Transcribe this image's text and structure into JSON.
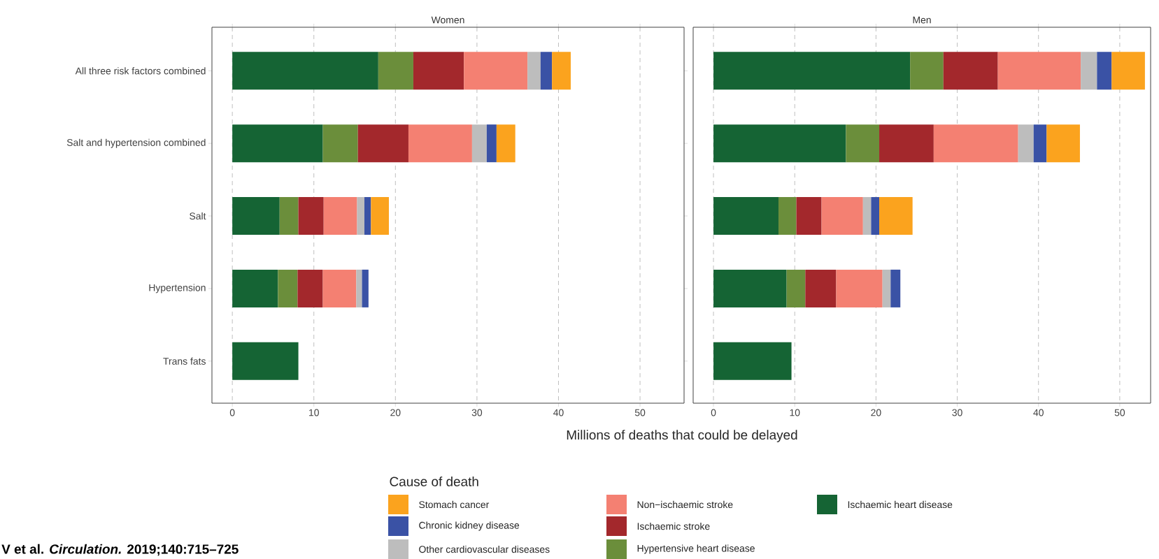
{
  "chart_data": [
    {
      "type": "bar",
      "title": "Women",
      "orientation": "horizontal",
      "stacked": true,
      "grid": "x",
      "legend": "bottom",
      "legend_title": "Cause of death",
      "xlabel": "Millions of deaths that could be delayed",
      "categories": [
        "All three risk factors combined",
        "Salt and hypertension combined",
        "Salt",
        "Hypertension",
        "Trans fats"
      ],
      "xlim": [
        -2.5,
        55.4
      ],
      "xticks": [
        0,
        10,
        20,
        30,
        40,
        50
      ],
      "series": [
        {
          "name": "Ischaemic heart disease",
          "color": "#156434",
          "values": [
            17.9,
            11.1,
            5.8,
            5.6,
            8.1
          ]
        },
        {
          "name": "Hypertensive heart disease",
          "color": "#6b8e3b",
          "values": [
            4.3,
            4.3,
            2.3,
            2.4,
            null
          ]
        },
        {
          "name": "Ischaemic stroke",
          "color": "#a3282c",
          "values": [
            6.2,
            6.2,
            3.1,
            3.1,
            null
          ]
        },
        {
          "name": "Non−ischaemic stroke",
          "color": "#f48072",
          "values": [
            7.8,
            7.8,
            4.1,
            4.1,
            null
          ]
        },
        {
          "name": "Other cardiovascular diseases",
          "color": "#bdbdbd",
          "values": [
            1.6,
            1.8,
            0.9,
            0.7,
            null
          ]
        },
        {
          "name": "Chronic kidney disease",
          "color": "#3a52a5",
          "values": [
            1.4,
            1.2,
            0.8,
            0.8,
            null
          ]
        },
        {
          "name": "Stomach cancer",
          "color": "#fba31e",
          "values": [
            2.3,
            2.3,
            2.2,
            null,
            null
          ]
        }
      ],
      "annotations": [
        "**V et al.  *Circulation.* 2019;140:715–725**"
      ]
    },
    {
      "type": "bar",
      "title": "Men",
      "orientation": "horizontal",
      "stacked": true,
      "grid": "x",
      "tick_labels": "x",
      "categories": [
        null,
        null,
        null,
        null,
        null
      ],
      "xlim": [
        -2.5,
        53.8
      ],
      "xticks": [
        0,
        10,
        20,
        30,
        40,
        50
      ],
      "series": [
        {
          "color": "#156434",
          "values": [
            24.2,
            16.3,
            8.0,
            9.0,
            9.6
          ]
        },
        {
          "color": "#6b8e3b",
          "values": [
            4.1,
            4.1,
            2.2,
            2.3,
            null
          ]
        },
        {
          "color": "#a3282c",
          "values": [
            6.7,
            6.7,
            3.1,
            3.8,
            null
          ]
        },
        {
          "color": "#f48072",
          "values": [
            10.2,
            10.4,
            5.1,
            5.7,
            null
          ]
        },
        {
          "color": "#bdbdbd",
          "values": [
            2.0,
            1.9,
            1.0,
            1.0,
            null
          ]
        },
        {
          "color": "#3a52a5",
          "values": [
            1.8,
            1.6,
            1.0,
            1.2,
            null
          ]
        },
        {
          "color": "#fba31e",
          "values": [
            4.1,
            4.1,
            4.1,
            null,
            null
          ]
        }
      ]
    }
  ]
}
